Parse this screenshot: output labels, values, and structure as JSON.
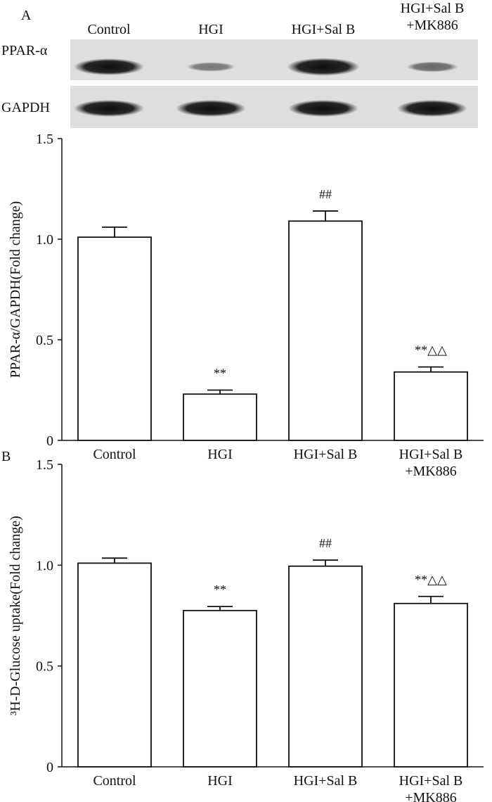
{
  "blot": {
    "panel_label": "A",
    "lanes": [
      "Control",
      "HGI",
      "HGI+Sal B",
      "HGI+Sal B\n+MK886"
    ],
    "rows": [
      {
        "label": "PPAR-α",
        "intensity": [
          1.0,
          0.23,
          1.09,
          0.34
        ]
      },
      {
        "label": "GAPDH",
        "intensity": [
          1.0,
          1.0,
          1.0,
          1.0
        ]
      }
    ]
  },
  "chart_data": [
    {
      "type": "bar",
      "panel_label": "",
      "categories": [
        "Control",
        "HGI",
        "HGI+Sal B",
        "HGI+Sal B\n+MK886"
      ],
      "values": [
        1.01,
        0.23,
        1.09,
        0.34
      ],
      "errors": [
        0.05,
        0.02,
        0.05,
        0.025
      ],
      "annotations": [
        "",
        "**",
        "##",
        "**△△"
      ],
      "ylabel": "PPAR-α/GAPDH(Fold change)",
      "ylim": [
        0,
        1.5
      ],
      "yticks": [
        0,
        0.5,
        1.0,
        1.5
      ],
      "ytick_labels": [
        "0",
        "0.5",
        "1.0",
        "1.5"
      ]
    },
    {
      "type": "bar",
      "panel_label": "B",
      "categories": [
        "Control",
        "HGI",
        "HGI+Sal B",
        "HGI+Sal B\n+MK886"
      ],
      "values": [
        1.01,
        0.775,
        0.995,
        0.81
      ],
      "errors": [
        0.025,
        0.02,
        0.03,
        0.035
      ],
      "annotations": [
        "",
        "**",
        "##",
        "**△△"
      ],
      "ylabel": "³H-D-Glucose uptake(Fold change)",
      "ylim": [
        0,
        1.5
      ],
      "yticks": [
        0,
        0.5,
        1.0,
        1.5
      ],
      "ytick_labels": [
        "0",
        "0.5",
        "1.0",
        "1.5"
      ]
    }
  ]
}
